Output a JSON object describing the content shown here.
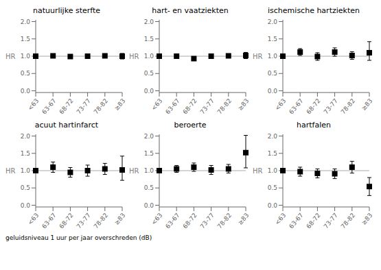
{
  "chart_data": [
    {
      "type": "scatter",
      "title": "natuurlijke sterfte",
      "categories": [
        "<63",
        "63-67",
        "68-72",
        "73-77",
        "78-82",
        "≥83"
      ],
      "values": [
        1.0,
        1.01,
        0.99,
        1.0,
        1.01,
        1.0
      ],
      "ci_low": [
        1.0,
        0.99,
        0.97,
        0.98,
        0.99,
        0.92
      ],
      "ci_high": [
        1.0,
        1.03,
        1.01,
        1.02,
        1.03,
        1.08
      ],
      "ylabel": "HR",
      "ylim": [
        -0.05,
        2.05
      ],
      "yticks": [
        {
          "value": 0.0,
          "label": "0.0"
        },
        {
          "value": 0.5,
          "label": "0.5"
        },
        {
          "value": 1.0,
          "label": "1.0"
        },
        {
          "value": 1.5,
          "label": "1.5"
        },
        {
          "value": 2.0,
          "label": "2.0"
        }
      ],
      "ref_line": {
        "value": 1.0,
        "color": "#aaaaaa"
      },
      "color": "black",
      "marker": "square",
      "grid": false
    },
    {
      "type": "scatter",
      "title": "hart- en vaatziekten",
      "categories": [
        "<63",
        "63-67",
        "68-72",
        "73-77",
        "78-82",
        "≥83"
      ],
      "values": [
        1.0,
        1.0,
        0.93,
        1.0,
        1.01,
        1.02
      ],
      "ci_low": [
        1.0,
        0.97,
        0.88,
        0.96,
        0.97,
        0.93
      ],
      "ci_high": [
        1.0,
        1.03,
        0.98,
        1.04,
        1.05,
        1.11
      ],
      "ylabel": "HR",
      "ylim": [
        -0.05,
        2.05
      ],
      "yticks": [
        {
          "value": 0.0,
          "label": "0.0"
        },
        {
          "value": 0.5,
          "label": "0.5"
        },
        {
          "value": 1.0,
          "label": "1.0"
        },
        {
          "value": 1.5,
          "label": "1.5"
        },
        {
          "value": 2.0,
          "label": "2.0"
        }
      ],
      "ref_line": {
        "value": 1.0,
        "color": "#aaaaaa"
      },
      "color": "black",
      "marker": "square",
      "grid": false
    },
    {
      "type": "scatter",
      "title": "ischemische hartziekten",
      "categories": [
        "<63",
        "63-67",
        "68-72",
        "73-77",
        "78-82",
        "≥83"
      ],
      "values": [
        1.0,
        1.12,
        0.99,
        1.12,
        1.02,
        1.1
      ],
      "ci_low": [
        1.0,
        1.02,
        0.88,
        1.0,
        0.91,
        0.88
      ],
      "ci_high": [
        1.0,
        1.22,
        1.1,
        1.24,
        1.13,
        1.42
      ],
      "ylabel": "HR",
      "ylim": [
        -0.05,
        2.05
      ],
      "yticks": [
        {
          "value": 0.0,
          "label": "0.0"
        },
        {
          "value": 0.5,
          "label": "0.5"
        },
        {
          "value": 1.0,
          "label": "1.0"
        },
        {
          "value": 1.5,
          "label": "1.5"
        },
        {
          "value": 2.0,
          "label": "2.0"
        }
      ],
      "ref_line": {
        "value": 1.0,
        "color": "#aaaaaa"
      },
      "color": "black",
      "marker": "square",
      "grid": false
    },
    {
      "type": "scatter",
      "title": "acuut hartinfarct",
      "categories": [
        "<63",
        "63-67",
        "68-72",
        "73-77",
        "78-82",
        "≥83"
      ],
      "values": [
        1.0,
        1.1,
        0.95,
        1.0,
        1.05,
        1.02
      ],
      "ci_low": [
        1.0,
        0.95,
        0.81,
        0.84,
        0.89,
        0.72
      ],
      "ci_high": [
        1.0,
        1.25,
        1.09,
        1.16,
        1.21,
        1.42
      ],
      "ylabel": "HR",
      "ylim": [
        -0.05,
        2.05
      ],
      "yticks": [
        {
          "value": 0.0,
          "label": "0.0"
        },
        {
          "value": 0.5,
          "label": "0.5"
        },
        {
          "value": 1.0,
          "label": "1.0"
        },
        {
          "value": 1.5,
          "label": "1.5"
        },
        {
          "value": 2.0,
          "label": "2.0"
        }
      ],
      "ref_line": {
        "value": 1.0,
        "color": "#aaaaaa"
      },
      "color": "black",
      "marker": "square",
      "grid": false
    },
    {
      "type": "scatter",
      "title": "beroerte",
      "categories": [
        "<63",
        "63-67",
        "68-72",
        "73-77",
        "78-82",
        "≥83"
      ],
      "values": [
        1.0,
        1.05,
        1.1,
        1.02,
        1.05,
        1.52
      ],
      "ci_low": [
        1.0,
        0.95,
        0.98,
        0.89,
        0.93,
        1.08
      ],
      "ci_high": [
        1.0,
        1.15,
        1.22,
        1.15,
        1.18,
        2.02
      ],
      "ylabel": "HR",
      "ylim": [
        -0.05,
        2.05
      ],
      "yticks": [
        {
          "value": 0.0,
          "label": "0.0"
        },
        {
          "value": 0.5,
          "label": "0.5"
        },
        {
          "value": 1.0,
          "label": "1.0"
        },
        {
          "value": 1.5,
          "label": "1.5"
        },
        {
          "value": 2.0,
          "label": "2.0"
        }
      ],
      "ref_line": {
        "value": 1.0,
        "color": "#aaaaaa"
      },
      "color": "black",
      "marker": "square",
      "grid": false
    },
    {
      "type": "scatter",
      "title": "hartfalen",
      "categories": [
        "<63",
        "63-67",
        "68-72",
        "73-77",
        "78-82",
        "≥83"
      ],
      "values": [
        1.0,
        0.97,
        0.92,
        0.91,
        1.1,
        0.54
      ],
      "ci_low": [
        1.0,
        0.84,
        0.79,
        0.77,
        0.93,
        0.28
      ],
      "ci_high": [
        1.0,
        1.1,
        1.05,
        1.05,
        1.27,
        0.8
      ],
      "ylabel": "HR",
      "ylim": [
        -0.05,
        2.05
      ],
      "yticks": [
        {
          "value": 0.0,
          "label": "0.0"
        },
        {
          "value": 0.5,
          "label": "0.5"
        },
        {
          "value": 1.0,
          "label": "1.0"
        },
        {
          "value": 1.5,
          "label": "1.5"
        },
        {
          "value": 2.0,
          "label": "2.0"
        }
      ],
      "ref_line": {
        "value": 1.0,
        "color": "#aaaaaa"
      },
      "color": "black",
      "marker": "square",
      "grid": false
    }
  ],
  "footnote": "geluidsniveau 1 uur per jaar overschreden (dB)"
}
